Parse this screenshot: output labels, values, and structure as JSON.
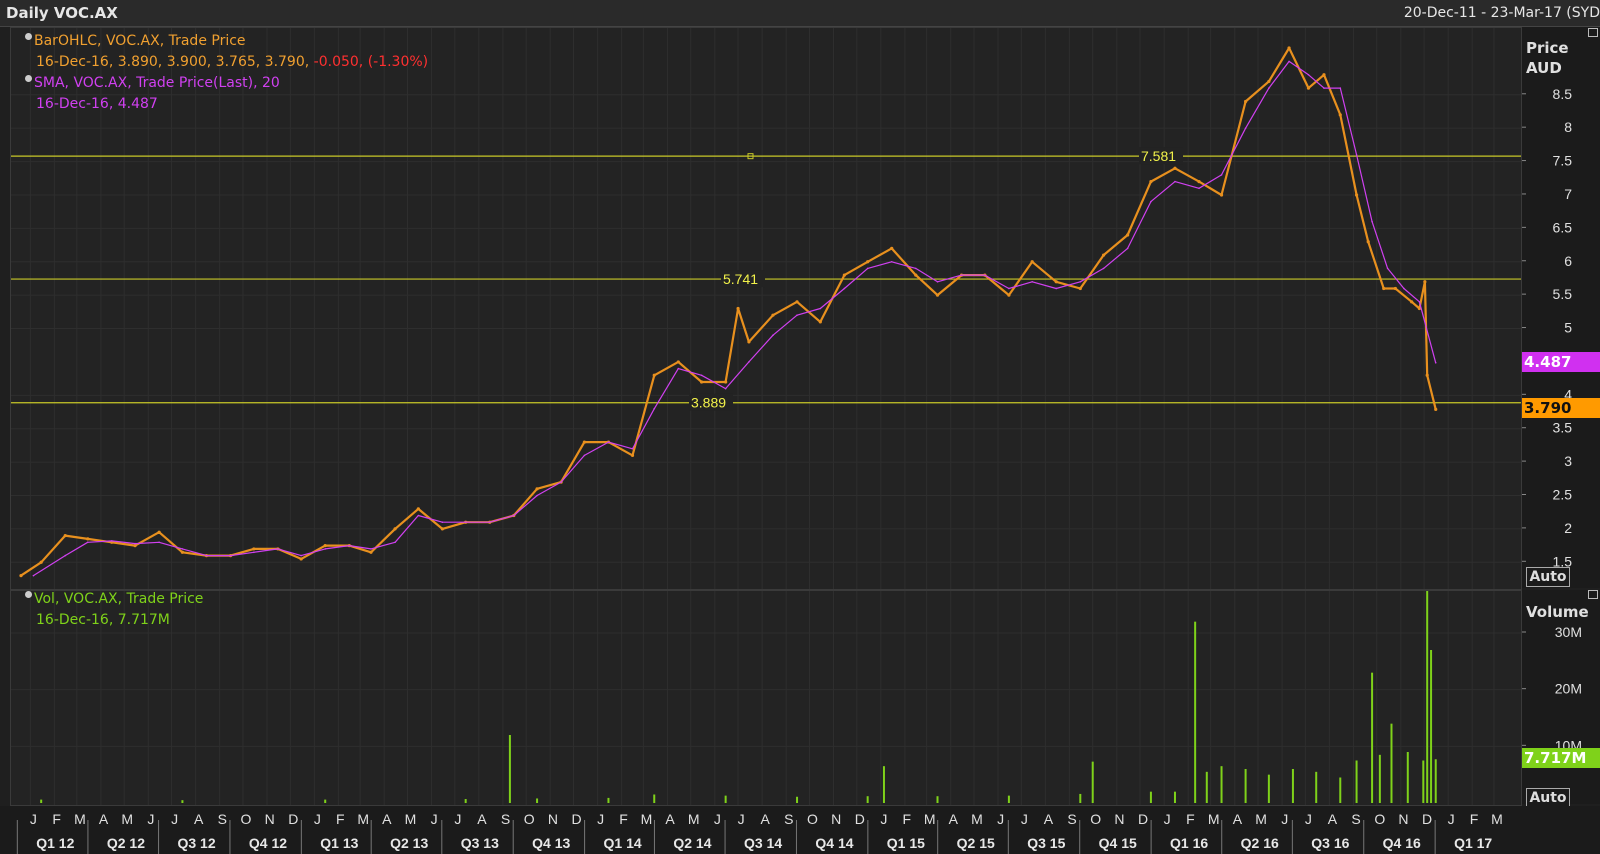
{
  "window": {
    "title": "Daily VOC.AX",
    "date_range": "20-Dec-11 - 23-Mar-17 (SYD"
  },
  "legend": {
    "bar": {
      "line1": "BarOHLC, VOC.AX, Trade Price",
      "line2_values": "16-Dec-16, 3.890, 3.900, 3.765, 3.790,",
      "line2_change": "-0.050, (-1.30%)",
      "color": "#f0a030",
      "change_color": "#ff3030"
    },
    "sma": {
      "line1": "SMA, VOC.AX, Trade Price(Last),  20",
      "line2": "16-Dec-16, 4.487",
      "color": "#d040f0"
    },
    "vol": {
      "line1": "Vol, VOC.AX, Trade Price",
      "line2": "16-Dec-16, 7.717M",
      "color": "#7fd21a"
    }
  },
  "price_axis": {
    "title_line1": "Price",
    "title_line2": "AUD",
    "auto_label": "Auto",
    "current_sma_tag": "4.487",
    "current_price_tag": "3.790",
    "sma_tag_color": "#d030f0",
    "price_tag_color": "#ff9a00"
  },
  "volume_axis": {
    "title": "Volume",
    "auto_label": "Auto",
    "current_volume_tag": "7.717M",
    "volume_tag_color": "#7fd21a"
  },
  "chart_data": [
    {
      "type": "line",
      "title": "Daily VOC.AX",
      "ylabel": "Price AUD",
      "ylim": [
        1.1,
        9.5
      ],
      "yticks": [
        1.5,
        2,
        2.5,
        3,
        3.5,
        4,
        5,
        5.5,
        6,
        6.5,
        7,
        7.5,
        8,
        8.5
      ],
      "ytick_labels": [
        "1.5",
        "2",
        "2.5",
        "3",
        "3.5",
        "4",
        "5",
        "5.5",
        "6",
        "6.5",
        "7",
        "7.5",
        "8",
        "8.5"
      ],
      "x_start": "2011-12-20",
      "x_end": "2017-03-23",
      "horizontal_lines": [
        {
          "value": 7.581,
          "label": "7.581"
        },
        {
          "value": 5.741,
          "label": "5.741"
        },
        {
          "value": 3.889,
          "label": "3.889"
        }
      ],
      "series": [
        {
          "name": "BarOHLC, VOC.AX, Trade Price",
          "color": "#e8901e",
          "x": [
            "2011-12-20",
            "2012-01-15",
            "2012-02-15",
            "2012-03-15",
            "2012-04-15",
            "2012-05-15",
            "2012-06-15",
            "2012-07-15",
            "2012-08-15",
            "2012-09-15",
            "2012-10-15",
            "2012-11-15",
            "2012-12-15",
            "2013-01-15",
            "2013-02-15",
            "2013-03-15",
            "2013-04-15",
            "2013-05-15",
            "2013-06-15",
            "2013-07-15",
            "2013-08-15",
            "2013-09-15",
            "2013-10-15",
            "2013-11-15",
            "2013-12-15",
            "2014-01-15",
            "2014-02-15",
            "2014-03-15",
            "2014-04-15",
            "2014-05-15",
            "2014-06-15",
            "2014-07-01",
            "2014-07-15",
            "2014-08-15",
            "2014-09-15",
            "2014-10-15",
            "2014-11-15",
            "2014-12-15",
            "2015-01-15",
            "2015-02-15",
            "2015-03-15",
            "2015-04-15",
            "2015-05-15",
            "2015-06-15",
            "2015-07-15",
            "2015-08-15",
            "2015-09-15",
            "2015-10-15",
            "2015-11-15",
            "2015-12-15",
            "2016-01-15",
            "2016-02-15",
            "2016-03-15",
            "2016-04-15",
            "2016-05-15",
            "2016-06-10",
            "2016-07-05",
            "2016-07-25",
            "2016-08-15",
            "2016-09-05",
            "2016-09-20",
            "2016-10-10",
            "2016-10-25",
            "2016-11-15",
            "2016-11-25",
            "2016-12-02",
            "2016-12-05",
            "2016-12-16"
          ],
          "values": [
            1.3,
            1.5,
            1.9,
            1.85,
            1.8,
            1.75,
            1.95,
            1.65,
            1.6,
            1.6,
            1.7,
            1.7,
            1.55,
            1.75,
            1.75,
            1.65,
            2.0,
            2.3,
            2.0,
            2.1,
            2.1,
            2.2,
            2.6,
            2.7,
            3.3,
            3.3,
            3.1,
            4.3,
            4.5,
            4.2,
            4.2,
            5.3,
            4.8,
            5.2,
            5.4,
            5.1,
            5.8,
            6.0,
            6.2,
            5.8,
            5.5,
            5.8,
            5.8,
            5.5,
            6.0,
            5.7,
            5.6,
            6.1,
            6.4,
            7.2,
            7.4,
            7.2,
            7.0,
            8.4,
            8.7,
            9.2,
            8.6,
            8.8,
            8.2,
            7.0,
            6.3,
            5.6,
            5.6,
            5.4,
            5.3,
            5.7,
            4.3,
            3.79
          ]
        },
        {
          "name": "SMA, VOC.AX, Trade Price(Last), 20",
          "color": "#d040f0",
          "x": [
            "2012-01-05",
            "2012-02-15",
            "2012-03-15",
            "2012-04-15",
            "2012-05-15",
            "2012-06-15",
            "2012-07-15",
            "2012-08-15",
            "2012-09-15",
            "2012-10-15",
            "2012-11-15",
            "2012-12-15",
            "2013-01-15",
            "2013-02-15",
            "2013-03-15",
            "2013-04-15",
            "2013-05-15",
            "2013-06-15",
            "2013-07-15",
            "2013-08-15",
            "2013-09-15",
            "2013-10-15",
            "2013-11-15",
            "2013-12-15",
            "2014-01-15",
            "2014-02-15",
            "2014-03-15",
            "2014-04-15",
            "2014-05-15",
            "2014-06-15",
            "2014-07-15",
            "2014-08-15",
            "2014-09-15",
            "2014-10-15",
            "2014-11-15",
            "2014-12-15",
            "2015-01-15",
            "2015-02-15",
            "2015-03-15",
            "2015-04-15",
            "2015-05-15",
            "2015-06-15",
            "2015-07-15",
            "2015-08-15",
            "2015-09-15",
            "2015-10-15",
            "2015-11-15",
            "2015-12-15",
            "2016-01-15",
            "2016-02-15",
            "2016-03-15",
            "2016-04-15",
            "2016-05-15",
            "2016-06-10",
            "2016-07-05",
            "2016-07-25",
            "2016-08-15",
            "2016-09-05",
            "2016-09-25",
            "2016-10-15",
            "2016-11-05",
            "2016-11-25",
            "2016-12-16"
          ],
          "values": [
            1.3,
            1.6,
            1.8,
            1.82,
            1.78,
            1.8,
            1.7,
            1.6,
            1.6,
            1.65,
            1.7,
            1.6,
            1.7,
            1.75,
            1.7,
            1.8,
            2.2,
            2.1,
            2.1,
            2.1,
            2.2,
            2.5,
            2.7,
            3.1,
            3.3,
            3.2,
            3.8,
            4.4,
            4.3,
            4.1,
            4.5,
            4.9,
            5.2,
            5.3,
            5.6,
            5.9,
            6.0,
            5.9,
            5.7,
            5.8,
            5.8,
            5.6,
            5.7,
            5.6,
            5.7,
            5.9,
            6.2,
            6.9,
            7.2,
            7.1,
            7.3,
            8.0,
            8.6,
            9.0,
            8.8,
            8.6,
            8.6,
            7.6,
            6.6,
            5.9,
            5.6,
            5.4,
            4.487
          ]
        }
      ]
    },
    {
      "type": "bar",
      "title": "Vol, VOC.AX, Trade Price",
      "ylabel": "Volume",
      "ylim": [
        0,
        36000000
      ],
      "yticks": [
        10000000,
        20000000,
        30000000
      ],
      "ytick_labels": [
        "10M",
        "20M",
        "30M"
      ],
      "color": "#7fd21a",
      "x": [
        "2012-01-15",
        "2012-07-15",
        "2013-01-15",
        "2013-07-15",
        "2013-09-10",
        "2013-10-15",
        "2014-01-15",
        "2014-03-15",
        "2014-06-15",
        "2014-09-15",
        "2014-12-15",
        "2015-01-05",
        "2015-03-15",
        "2015-06-15",
        "2015-09-15",
        "2015-10-01",
        "2015-12-15",
        "2016-01-15",
        "2016-02-10",
        "2016-02-25",
        "2016-03-15",
        "2016-04-15",
        "2016-05-15",
        "2016-06-15",
        "2016-07-15",
        "2016-08-15",
        "2016-09-05",
        "2016-09-25",
        "2016-10-05",
        "2016-10-20",
        "2016-11-10",
        "2016-11-30",
        "2016-12-05",
        "2016-12-10",
        "2016-12-16"
      ],
      "values": [
        600000,
        500000,
        600000,
        700000,
        12000000,
        800000,
        900000,
        1500000,
        1300000,
        1100000,
        1200000,
        6500000,
        1200000,
        1300000,
        1600000,
        7300000,
        2000000,
        2000000,
        32000000,
        5500000,
        6500000,
        6000000,
        5000000,
        6000000,
        5500000,
        4500000,
        7500000,
        23000000,
        8500000,
        14000000,
        9000000,
        7500000,
        40000000,
        27000000,
        7717000
      ]
    }
  ],
  "date_axis": {
    "months": [
      "J",
      "F",
      "M",
      "A",
      "M",
      "J",
      "J",
      "A",
      "S",
      "O",
      "N",
      "D",
      "J",
      "F",
      "M",
      "A",
      "M",
      "J",
      "J",
      "A",
      "S",
      "O",
      "N",
      "D",
      "J",
      "F",
      "M",
      "A",
      "M",
      "J",
      "J",
      "A",
      "S",
      "O",
      "N",
      "D",
      "J",
      "F",
      "M",
      "A",
      "M",
      "J",
      "J",
      "A",
      "S",
      "O",
      "N",
      "D",
      "J",
      "F",
      "M",
      "A",
      "M",
      "J",
      "J",
      "A",
      "S",
      "O",
      "N",
      "D",
      "J",
      "F",
      "M"
    ],
    "quarters": [
      "Q1 12",
      "Q2 12",
      "Q3 12",
      "Q4 12",
      "Q1 13",
      "Q2 13",
      "Q3 13",
      "Q4 13",
      "Q1 14",
      "Q2 14",
      "Q3 14",
      "Q4 14",
      "Q1 15",
      "Q2 15",
      "Q3 15",
      "Q4 15",
      "Q1 16",
      "Q2 16",
      "Q3 16",
      "Q4 16",
      "Q1 17"
    ]
  }
}
